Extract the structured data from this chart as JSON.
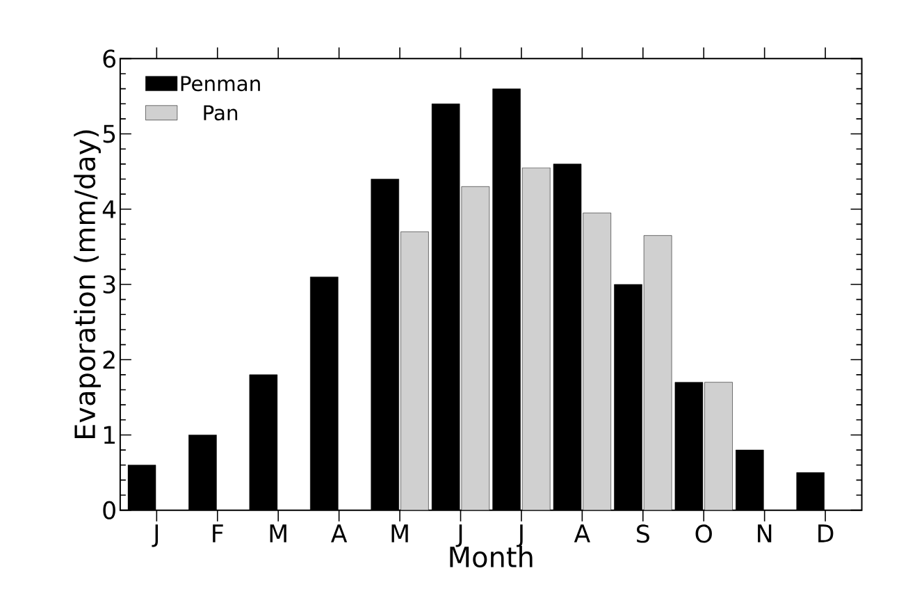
{
  "chart_data": {
    "type": "bar",
    "xlabel": "Month",
    "ylabel": "Evaporation (mm/day)",
    "categories": [
      "J",
      "F",
      "M",
      "A",
      "M",
      "J",
      "J",
      "A",
      "S",
      "O",
      "N",
      "D"
    ],
    "series": [
      {
        "name": "Penman",
        "color": "#000000",
        "values": [
          0.6,
          1.0,
          1.8,
          3.1,
          4.4,
          5.4,
          5.6,
          4.6,
          3.0,
          1.7,
          0.8,
          0.5
        ]
      },
      {
        "name": "Pan",
        "color": "#d0d0d0",
        "values": [
          null,
          null,
          null,
          null,
          3.7,
          4.3,
          4.55,
          3.95,
          3.65,
          1.7,
          null,
          null
        ]
      }
    ],
    "ylim": [
      0,
      6
    ],
    "yticks": [
      0,
      1,
      2,
      3,
      4,
      5,
      6
    ],
    "legend": "top left",
    "grid": false
  }
}
